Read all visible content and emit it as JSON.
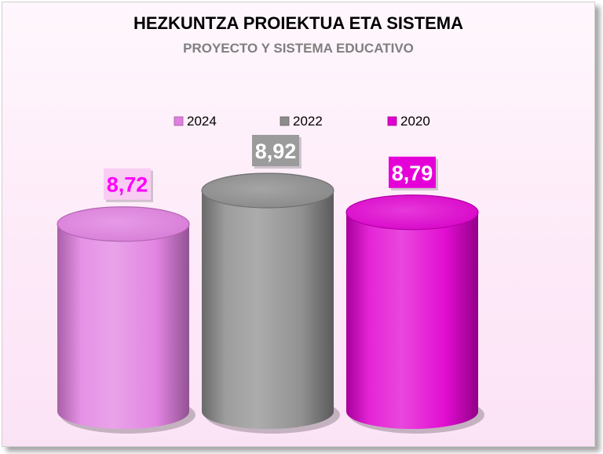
{
  "chart_data": {
    "type": "bar",
    "title": "HEZKUNTZA PROIEKTUA ETA SISTEMA",
    "subtitle": "PROYECTO Y SISTEMA EDUCATIVO",
    "categories": [
      "2024",
      "2022",
      "2020"
    ],
    "series": [
      {
        "values": [
          8.72,
          8.92,
          8.79
        ]
      }
    ],
    "data_labels": [
      "8,72",
      "8,92",
      "8,79"
    ],
    "legend": {
      "position": "top",
      "entries": [
        "2024",
        "2022",
        "2020"
      ]
    },
    "colors": [
      "#e07fe0",
      "#8c8c8c",
      "#e000d0"
    ],
    "label_backgrounds": [
      "#f9cdf3",
      "#9b9b9b",
      "#e600d8"
    ],
    "label_colors": [
      "#ff00ff",
      "#ffffff",
      "#ffffff"
    ],
    "grid": false,
    "axes_visible": false
  }
}
